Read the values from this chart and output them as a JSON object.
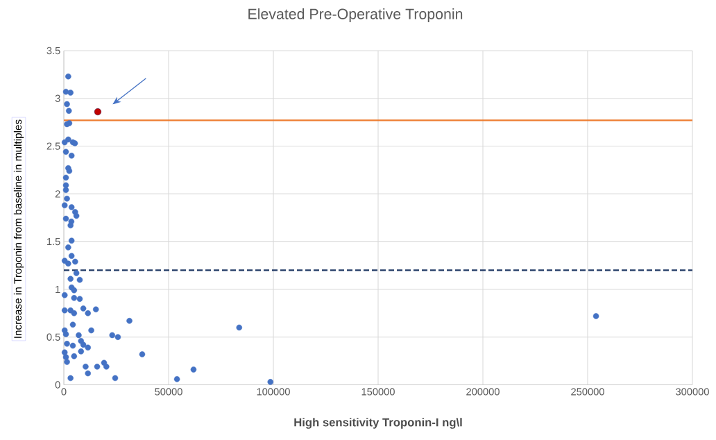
{
  "chart_data": {
    "type": "scatter",
    "title": "Elevated Pre-Operative Troponin",
    "xlabel": "High sensitivity Troponin-I ng\\l",
    "ylabel": "Increase in Troponin from baseline in multiples",
    "xlim": [
      0,
      300000
    ],
    "ylim": [
      0,
      3.5
    ],
    "xticks": [
      0,
      50000,
      100000,
      150000,
      200000,
      250000,
      300000
    ],
    "yticks": [
      0,
      0.5,
      1,
      1.5,
      2,
      2.5,
      3,
      3.5
    ],
    "grid": true,
    "marker": "circle",
    "series": [
      {
        "color": "#4472c4",
        "x": [
          2100,
          1000,
          3200,
          1500,
          2400,
          1500,
          2600,
          2100,
          4300,
          5300,
          400,
          1000,
          3700,
          2100,
          2600,
          1000,
          1000,
          1000,
          1500,
          400,
          3700,
          5400,
          6000,
          1000,
          3600,
          3200,
          3700,
          2100,
          400,
          3700,
          5400,
          2100,
          6000,
          3200,
          7600,
          3700,
          400,
          4900,
          4900,
          7600,
          400,
          3200,
          4900,
          9300,
          11500,
          15300,
          31300,
          4300,
          400,
          13100,
          1000,
          7100,
          23100,
          25800,
          1500,
          4300,
          8200,
          9300,
          11500,
          8200,
          400,
          1000,
          4900,
          1500,
          37400,
          10400,
          11500,
          15900,
          19200,
          20300,
          3200,
          24500,
          54000,
          61900,
          83700,
          98600,
          254000
        ],
        "values": [
          3.23,
          3.07,
          3.06,
          2.94,
          2.87,
          2.73,
          2.74,
          2.57,
          2.54,
          2.53,
          2.54,
          2.44,
          2.4,
          2.27,
          2.24,
          2.17,
          2.09,
          2.04,
          1.95,
          1.88,
          1.86,
          1.81,
          1.77,
          1.74,
          1.71,
          1.67,
          1.51,
          1.44,
          1.3,
          1.35,
          1.29,
          1.27,
          1.17,
          1.11,
          1.1,
          1.02,
          0.94,
          0.99,
          0.91,
          0.9,
          0.78,
          0.78,
          0.75,
          0.8,
          0.75,
          0.79,
          0.67,
          0.63,
          0.57,
          0.57,
          0.53,
          0.52,
          0.52,
          0.5,
          0.43,
          0.41,
          0.46,
          0.42,
          0.39,
          0.35,
          0.34,
          0.29,
          0.3,
          0.24,
          0.32,
          0.19,
          0.12,
          0.19,
          0.23,
          0.19,
          0.07,
          0.07,
          0.06,
          0.16,
          0.6,
          0.03,
          0.72
        ]
      },
      {
        "color": "#c00000",
        "x": [
          16200
        ],
        "values": [
          2.86
        ]
      }
    ],
    "ref_lines": [
      {
        "axis": "y",
        "value": 2.77,
        "color": "#ed7d31",
        "line_style": "solid"
      },
      {
        "axis": "y",
        "value": 1.2,
        "color": "#1f3864",
        "line_style": "dashed"
      }
    ]
  }
}
